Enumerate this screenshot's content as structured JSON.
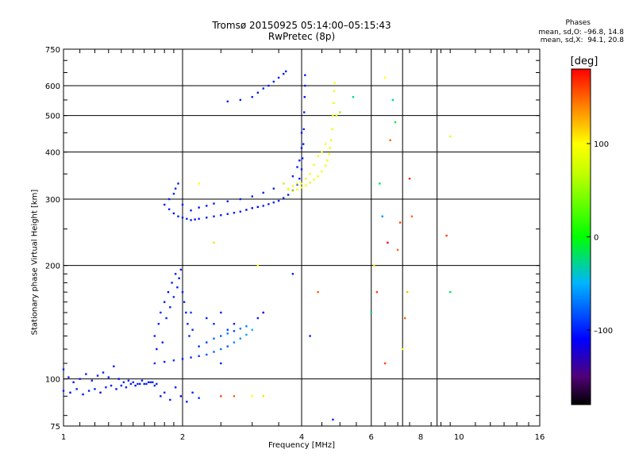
{
  "titles": {
    "line1": "Tromsø 20150925 05:14:00–05:15:43",
    "line2": "RwPretec (8p)"
  },
  "phases": {
    "heading": "Phases",
    "o_line": "mean, sd,O: –96.8, 14.8",
    "x_line": "mean, sd,X:  94.1, 20.8"
  },
  "colorbar": {
    "label": "[deg]",
    "ticks": [
      {
        "v": 100,
        "t": "100"
      },
      {
        "v": 0,
        "t": "0"
      },
      {
        "v": -100,
        "t": "–100"
      }
    ],
    "range": [
      -180,
      180
    ]
  },
  "chart_data": {
    "type": "scatter",
    "xlabel": "Frequency [MHz]",
    "ylabel": "Stationary phase Virtual Height [km]",
    "x_scale": "log",
    "y_scale": "log",
    "xlim": [
      1,
      16
    ],
    "ylim": [
      75,
      750
    ],
    "grid": true,
    "x_ticks": [
      {
        "v": 1,
        "t": "1"
      },
      {
        "v": 2,
        "t": "2"
      },
      {
        "v": 4,
        "t": "4"
      },
      {
        "v": 6,
        "t": "6"
      },
      {
        "v": 8,
        "t": "8"
      },
      {
        "v": 10,
        "t": "10"
      },
      {
        "v": 16,
        "t": "16"
      }
    ],
    "x_grid": [
      2,
      4,
      6,
      7.2,
      8.8
    ],
    "y_ticks": [
      {
        "v": 75,
        "t": "75"
      },
      {
        "v": 100,
        "t": "100"
      },
      {
        "v": 200,
        "t": "200"
      },
      {
        "v": 300,
        "t": "300"
      },
      {
        "v": 400,
        "t": "400"
      },
      {
        "v": 500,
        "t": "500"
      },
      {
        "v": 600,
        "t": "600"
      },
      {
        "v": 750,
        "t": "750"
      }
    ],
    "y_grid": [
      100,
      200,
      300,
      400,
      500,
      600
    ],
    "color_variable": "Phase [deg]",
    "series": [
      {
        "points": [
          [
            1.0,
            93,
            -100
          ],
          [
            1.04,
            92,
            -110
          ],
          [
            1.08,
            94,
            -100
          ],
          [
            1.12,
            91,
            -105
          ],
          [
            1.16,
            93,
            -100
          ],
          [
            1.2,
            94,
            -100
          ],
          [
            1.24,
            92,
            -110
          ],
          [
            1.28,
            95,
            -100
          ],
          [
            1.32,
            96,
            -100
          ],
          [
            1.36,
            94,
            -105
          ],
          [
            1.4,
            96,
            -100
          ],
          [
            1.44,
            95,
            -100
          ],
          [
            1.48,
            97,
            -100
          ],
          [
            1.52,
            96,
            -105
          ],
          [
            1.56,
            97,
            -100
          ],
          [
            1.6,
            97,
            -100
          ],
          [
            1.64,
            98,
            -100
          ],
          [
            1.68,
            98,
            -100
          ],
          [
            1.72,
            97,
            -100
          ],
          [
            1.0,
            106,
            -100
          ],
          [
            1.03,
            101,
            -100
          ],
          [
            1.06,
            98,
            -105
          ],
          [
            1.1,
            100,
            -100
          ],
          [
            1.14,
            103,
            -100
          ],
          [
            1.18,
            99,
            -100
          ],
          [
            1.22,
            102,
            -100
          ],
          [
            1.26,
            104,
            -100
          ],
          [
            1.3,
            101,
            -100
          ],
          [
            1.34,
            108,
            -100
          ],
          [
            1.38,
            100,
            -105
          ],
          [
            1.42,
            98,
            -100
          ],
          [
            1.46,
            99,
            -100
          ],
          [
            1.5,
            98,
            -100
          ],
          [
            1.54,
            97,
            -100
          ],
          [
            1.58,
            99,
            -100
          ],
          [
            1.62,
            97,
            -100
          ],
          [
            1.66,
            98,
            -100
          ],
          [
            1.7,
            96,
            -100
          ],
          [
            1.76,
            90,
            -105
          ],
          [
            1.8,
            92,
            -100
          ],
          [
            1.86,
            88,
            -100
          ],
          [
            1.92,
            95,
            -100
          ],
          [
            1.98,
            90,
            -105
          ],
          [
            2.05,
            87,
            -100
          ],
          [
            2.12,
            92,
            -100
          ],
          [
            2.2,
            89,
            -95
          ],
          [
            1.7,
            110,
            -95
          ],
          [
            1.8,
            111,
            -100
          ],
          [
            1.9,
            112,
            -95
          ],
          [
            2.0,
            113,
            -100
          ],
          [
            2.1,
            114,
            -95
          ],
          [
            2.2,
            115,
            -90
          ],
          [
            2.3,
            116,
            -80
          ],
          [
            2.4,
            118,
            -75
          ],
          [
            2.5,
            120,
            -70
          ],
          [
            2.6,
            122,
            -80
          ],
          [
            2.7,
            125,
            -65
          ],
          [
            2.8,
            128,
            -60
          ],
          [
            2.9,
            131,
            -55
          ],
          [
            3.0,
            135,
            -50
          ],
          [
            2.2,
            122,
            -95
          ],
          [
            2.3,
            125,
            -90
          ],
          [
            2.4,
            128,
            -75
          ],
          [
            2.5,
            130,
            -80
          ],
          [
            2.6,
            132,
            -70
          ],
          [
            2.7,
            134,
            -85
          ],
          [
            2.8,
            136,
            -70
          ],
          [
            2.9,
            138,
            -65
          ],
          [
            3.1,
            145,
            -100
          ],
          [
            3.2,
            150,
            -120
          ],
          [
            1.7,
            130,
            -100
          ],
          [
            1.72,
            120,
            -105
          ],
          [
            1.74,
            140,
            -100
          ],
          [
            1.76,
            150,
            -95
          ],
          [
            1.78,
            125,
            -100
          ],
          [
            1.8,
            160,
            -100
          ],
          [
            1.82,
            145,
            -100
          ],
          [
            1.84,
            170,
            -105
          ],
          [
            1.86,
            155,
            -100
          ],
          [
            1.88,
            180,
            -100
          ],
          [
            1.9,
            165,
            -95
          ],
          [
            1.92,
            190,
            -100
          ],
          [
            1.94,
            175,
            -100
          ],
          [
            1.96,
            185,
            -105
          ],
          [
            1.98,
            195,
            -100
          ],
          [
            2.0,
            170,
            -100
          ],
          [
            2.02,
            160,
            -95
          ],
          [
            2.04,
            150,
            -100
          ],
          [
            2.06,
            140,
            -100
          ],
          [
            2.08,
            130,
            -100
          ],
          [
            2.1,
            150,
            -90
          ],
          [
            2.12,
            135,
            -95
          ],
          [
            2.3,
            145,
            -100
          ],
          [
            2.4,
            140,
            -95
          ],
          [
            2.5,
            150,
            -100
          ],
          [
            2.6,
            135,
            -90
          ],
          [
            2.7,
            140,
            -100
          ],
          [
            2.5,
            110,
            -100
          ],
          [
            1.8,
            290,
            -100
          ],
          [
            1.85,
            282,
            -100
          ],
          [
            1.9,
            275,
            -105
          ],
          [
            1.95,
            270,
            -100
          ],
          [
            2.0,
            268,
            -100
          ],
          [
            2.05,
            266,
            -100
          ],
          [
            2.1,
            264,
            -100
          ],
          [
            2.15,
            265,
            -105
          ],
          [
            2.2,
            266,
            -100
          ],
          [
            2.3,
            268,
            -100
          ],
          [
            2.4,
            270,
            -100
          ],
          [
            2.5,
            272,
            -100
          ],
          [
            2.6,
            274,
            -100
          ],
          [
            2.7,
            276,
            -100
          ],
          [
            2.8,
            278,
            -100
          ],
          [
            2.9,
            281,
            -110
          ],
          [
            3.0,
            284,
            -120
          ],
          [
            3.1,
            286,
            -110
          ],
          [
            3.2,
            288,
            -100
          ],
          [
            3.3,
            291,
            -100
          ],
          [
            3.4,
            294,
            -100
          ],
          [
            3.5,
            297,
            -100
          ],
          [
            3.6,
            302,
            -100
          ],
          [
            3.7,
            308,
            -100
          ],
          [
            3.8,
            316,
            -100
          ],
          [
            3.9,
            328,
            -100
          ],
          [
            3.95,
            340,
            -100
          ],
          [
            4.0,
            360,
            -100
          ],
          [
            4.02,
            385,
            -100
          ],
          [
            4.04,
            420,
            -100
          ],
          [
            4.05,
            460,
            -100
          ],
          [
            4.06,
            510,
            -100
          ],
          [
            4.07,
            560,
            -105
          ],
          [
            4.08,
            600,
            -100
          ],
          [
            4.08,
            640,
            -100
          ],
          [
            1.85,
            300,
            -100
          ],
          [
            1.9,
            310,
            -100
          ],
          [
            1.92,
            320,
            -100
          ],
          [
            1.95,
            330,
            -100
          ],
          [
            2.0,
            290,
            -100
          ],
          [
            2.1,
            280,
            -100
          ],
          [
            2.2,
            285,
            -105
          ],
          [
            2.3,
            288,
            -100
          ],
          [
            2.4,
            292,
            -100
          ],
          [
            2.6,
            296,
            -100
          ],
          [
            2.8,
            300,
            -100
          ],
          [
            3.0,
            305,
            -100
          ],
          [
            3.2,
            312,
            -100
          ],
          [
            3.4,
            320,
            -100
          ],
          [
            3.6,
            330,
            -100
          ],
          [
            3.8,
            345,
            -100
          ],
          [
            3.9,
            365,
            -100
          ],
          [
            3.95,
            380,
            -100
          ],
          [
            4.0,
            410,
            -100
          ],
          [
            4.0,
            450,
            -100
          ],
          [
            2.6,
            545,
            -100
          ],
          [
            2.8,
            550,
            -100
          ],
          [
            3.0,
            560,
            -100
          ],
          [
            3.1,
            575,
            -100
          ],
          [
            3.2,
            590,
            -100
          ],
          [
            3.3,
            600,
            -100
          ],
          [
            3.4,
            615,
            -100
          ],
          [
            3.5,
            630,
            -100
          ],
          [
            3.6,
            645,
            -100
          ],
          [
            3.65,
            655,
            -100
          ],
          [
            3.6,
            330,
            90
          ],
          [
            3.7,
            320,
            90
          ],
          [
            3.8,
            315,
            85
          ],
          [
            3.9,
            318,
            90
          ],
          [
            4.0,
            322,
            95
          ],
          [
            4.1,
            326,
            90
          ],
          [
            4.2,
            332,
            90
          ],
          [
            4.3,
            338,
            95
          ],
          [
            4.4,
            345,
            90
          ],
          [
            4.5,
            355,
            95
          ],
          [
            4.6,
            368,
            90
          ],
          [
            4.65,
            380,
            90
          ],
          [
            4.7,
            395,
            95
          ],
          [
            4.72,
            410,
            90
          ],
          [
            4.75,
            430,
            90
          ],
          [
            4.78,
            460,
            90
          ],
          [
            4.8,
            500,
            95
          ],
          [
            4.82,
            540,
            90
          ],
          [
            4.83,
            580,
            90
          ],
          [
            4.85,
            610,
            95
          ],
          [
            4.9,
            500,
            90
          ],
          [
            4.6,
            420,
            95
          ],
          [
            4.5,
            400,
            90
          ],
          [
            4.4,
            390,
            90
          ],
          [
            4.3,
            370,
            90
          ],
          [
            4.2,
            350,
            95
          ],
          [
            4.1,
            340,
            90
          ],
          [
            4.0,
            330,
            95
          ],
          [
            3.9,
            330,
            90
          ],
          [
            3.8,
            325,
            90
          ],
          [
            3.7,
            318,
            90
          ],
          [
            2.2,
            330,
            100
          ],
          [
            2.5,
            90,
            160
          ],
          [
            2.7,
            90,
            150
          ],
          [
            3.0,
            90,
            100
          ],
          [
            3.2,
            90,
            110
          ],
          [
            3.1,
            200,
            100
          ],
          [
            3.8,
            190,
            -100
          ],
          [
            4.4,
            170,
            150
          ],
          [
            5.0,
            510,
            50
          ],
          [
            5.4,
            560,
            -30
          ],
          [
            6.0,
            150,
            -30
          ],
          [
            6.1,
            200,
            110
          ],
          [
            6.3,
            330,
            -20
          ],
          [
            6.5,
            630,
            100
          ],
          [
            6.7,
            430,
            150
          ],
          [
            6.8,
            550,
            -30
          ],
          [
            6.9,
            480,
            -10
          ],
          [
            7.0,
            220,
            150
          ],
          [
            7.2,
            120,
            90
          ],
          [
            7.4,
            170,
            120
          ],
          [
            7.5,
            340,
            170
          ],
          [
            7.6,
            270,
            150
          ],
          [
            9.5,
            440,
            90
          ],
          [
            9.3,
            240,
            160
          ],
          [
            9.5,
            170,
            -20
          ],
          [
            6.4,
            270,
            -60
          ],
          [
            6.6,
            230,
            180
          ],
          [
            7.1,
            260,
            160
          ],
          [
            6.2,
            170,
            160
          ],
          [
            2.4,
            230,
            110
          ],
          [
            4.2,
            130,
            -100
          ],
          [
            4.8,
            78,
            -100
          ],
          [
            6.5,
            110,
            160
          ],
          [
            7.3,
            145,
            150
          ]
        ]
      }
    ]
  }
}
